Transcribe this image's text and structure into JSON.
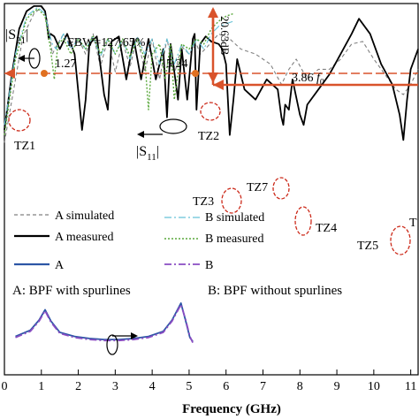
{
  "chart_data": {
    "type": "line",
    "xlabel": "Frequency (GHz)",
    "x_ticks": [
      "0",
      "1",
      "2",
      "3",
      "4",
      "5",
      "6",
      "7",
      "8",
      "9",
      "10",
      "11"
    ],
    "xlim": [
      0,
      11.2
    ],
    "ylim": [
      0,
      1
    ],
    "grid": false,
    "legend_position": "bottom-center",
    "series": [
      {
        "name": "A simulated",
        "style": "dashed",
        "color": "#808080",
        "x": [
          0.0,
          0.3,
          0.5,
          0.8,
          1.0,
          1.1,
          1.2,
          1.3,
          1.4,
          1.6,
          1.8,
          2.0,
          2.2,
          2.4,
          2.6,
          2.8,
          3.0,
          3.2,
          3.4,
          3.6,
          3.8,
          4.0,
          4.2,
          4.4,
          4.6,
          4.8,
          5.0,
          5.2,
          5.3,
          5.5,
          5.8,
          6.1,
          6.4,
          6.8,
          7.2,
          7.5,
          7.7,
          7.9,
          8.2,
          8.5,
          8.8,
          9.1,
          9.4,
          9.7,
          10.0,
          10.3,
          10.6,
          10.8,
          11.0,
          11.2
        ],
        "y": [
          0.45,
          0.7,
          0.87,
          0.96,
          0.985,
          0.97,
          0.9,
          0.8,
          0.83,
          0.88,
          0.83,
          0.86,
          0.8,
          0.88,
          0.75,
          0.86,
          0.73,
          0.85,
          0.75,
          0.87,
          0.73,
          0.86,
          0.7,
          0.86,
          0.72,
          0.83,
          0.8,
          0.84,
          0.8,
          0.83,
          0.88,
          0.86,
          0.82,
          0.8,
          0.76,
          0.68,
          0.74,
          0.78,
          0.7,
          0.74,
          0.74,
          0.78,
          0.84,
          0.85,
          0.78,
          0.72,
          0.66,
          0.64,
          0.68,
          0.74
        ]
      },
      {
        "name": "A measured",
        "style": "solid",
        "color": "#000000",
        "x": [
          0.0,
          0.2,
          0.4,
          0.6,
          0.8,
          1.0,
          1.1,
          1.15,
          1.2,
          1.25,
          1.35,
          1.5,
          1.7,
          1.9,
          2.1,
          2.2,
          2.3,
          2.5,
          2.7,
          2.8,
          2.9,
          3.1,
          3.3,
          3.5,
          3.7,
          3.9,
          4.1,
          4.3,
          4.4,
          4.5,
          4.7,
          4.8,
          4.95,
          5.1,
          5.15,
          5.2,
          5.3,
          5.45,
          5.6,
          5.8,
          5.9,
          6.0,
          6.1,
          6.2,
          6.3,
          6.5,
          6.8,
          7.1,
          7.4,
          7.5,
          7.55,
          7.6,
          7.7,
          7.8,
          8.0,
          8.1,
          8.2,
          8.5,
          8.8,
          9.1,
          9.4,
          9.6,
          9.9,
          10.2,
          10.5,
          10.7,
          10.8,
          10.9,
          11.0,
          11.2
        ],
        "y": [
          0.5,
          0.72,
          0.9,
          0.97,
          0.99,
          0.99,
          0.97,
          0.92,
          0.86,
          0.88,
          0.87,
          0.82,
          0.88,
          0.8,
          0.5,
          0.62,
          0.84,
          0.87,
          0.64,
          0.58,
          0.85,
          0.87,
          0.7,
          0.86,
          0.7,
          0.86,
          0.7,
          0.82,
          0.55,
          0.84,
          0.62,
          0.82,
          0.62,
          0.86,
          0.88,
          0.58,
          0.84,
          0.87,
          0.85,
          0.84,
          0.82,
          0.76,
          0.48,
          0.62,
          0.78,
          0.66,
          0.62,
          0.7,
          0.66,
          0.55,
          0.52,
          0.6,
          0.58,
          0.7,
          0.56,
          0.52,
          0.6,
          0.66,
          0.72,
          0.8,
          0.88,
          0.94,
          0.88,
          0.76,
          0.68,
          0.56,
          0.46,
          0.62,
          0.74,
          0.82
        ]
      },
      {
        "name": "B simulated",
        "style": "dashdot",
        "color": "#66c2d6",
        "x": [
          0.0,
          0.3,
          0.6,
          0.9,
          1.1,
          1.2,
          1.3,
          1.4,
          1.6,
          1.8,
          2.0,
          2.2,
          2.4,
          2.6,
          2.8,
          3.0,
          3.2,
          3.4,
          3.6,
          3.8,
          4.0,
          4.2,
          4.4,
          4.6,
          4.8,
          5.0,
          5.2,
          5.4,
          5.6,
          5.8,
          6.0,
          6.2
        ],
        "y": [
          0.52,
          0.8,
          0.95,
          0.985,
          0.96,
          0.89,
          0.84,
          0.82,
          0.88,
          0.82,
          0.86,
          0.82,
          0.87,
          0.79,
          0.86,
          0.8,
          0.86,
          0.78,
          0.87,
          0.8,
          0.86,
          0.76,
          0.86,
          0.76,
          0.84,
          0.8,
          0.86,
          0.82,
          0.88,
          0.91,
          0.92,
          0.93
        ]
      },
      {
        "name": "B measured",
        "style": "dotted",
        "color": "#5aa83c",
        "x": [
          0.0,
          0.3,
          0.6,
          0.9,
          1.1,
          1.25,
          1.35,
          1.45,
          1.6,
          1.8,
          2.0,
          2.2,
          2.4,
          2.6,
          2.8,
          3.0,
          3.2,
          3.4,
          3.6,
          3.8,
          3.9,
          4.0,
          4.2,
          4.35,
          4.5,
          4.6,
          4.8,
          5.0,
          5.2,
          5.4,
          5.6,
          5.8,
          6.0,
          6.2
        ],
        "y": [
          0.48,
          0.78,
          0.94,
          0.98,
          0.95,
          0.82,
          0.7,
          0.84,
          0.86,
          0.8,
          0.86,
          0.82,
          0.87,
          0.8,
          0.86,
          0.8,
          0.86,
          0.79,
          0.86,
          0.78,
          0.58,
          0.8,
          0.84,
          0.7,
          0.84,
          0.62,
          0.84,
          0.82,
          0.86,
          0.84,
          0.9,
          0.93,
          0.95,
          0.96
        ]
      }
    ],
    "inset": {
      "series": [
        {
          "name": "A",
          "style": "solid",
          "color": "#2d56a6",
          "x": [
            0.0,
            0.5,
            0.8,
            1.0,
            1.2,
            1.5,
            2.0,
            2.5,
            3.0,
            3.5,
            4.0,
            4.5,
            5.0,
            5.3,
            5.6,
            5.75,
            5.9,
            6.0
          ],
          "y": [
            0.3,
            0.42,
            0.62,
            0.82,
            0.6,
            0.38,
            0.3,
            0.26,
            0.24,
            0.24,
            0.26,
            0.3,
            0.4,
            0.62,
            0.95,
            0.62,
            0.28,
            0.2
          ]
        },
        {
          "name": "B",
          "style": "dashdot",
          "color": "#8a4cc2",
          "x": [
            0.0,
            0.5,
            0.8,
            1.0,
            1.2,
            1.5,
            2.0,
            2.5,
            3.0,
            3.5,
            4.0,
            4.5,
            5.0,
            5.3,
            5.6,
            5.75,
            5.9,
            6.0
          ],
          "y": [
            0.28,
            0.4,
            0.6,
            0.8,
            0.58,
            0.36,
            0.28,
            0.24,
            0.22,
            0.22,
            0.24,
            0.28,
            0.38,
            0.6,
            0.92,
            0.64,
            0.3,
            0.18
          ]
        }
      ]
    },
    "annotations": {
      "s21": "|S",
      "s21_sub": "21",
      "s11": "|S",
      "s11_sub": "11",
      "bar": "|",
      "fbw": "FBW=127.65%",
      "f1": "1.27",
      "f2": "5.24",
      "rejection": "20.63dB",
      "harmonic": "3.86",
      "harmonic_unit": "f",
      "harmonic_sub": "0",
      "tz": [
        "TZ1",
        "TZ2",
        "TZ3",
        "TZ7",
        "TZ4",
        "TZ5",
        "T"
      ],
      "caption_a": "A: BPF with spurlines",
      "caption_b": "B: BPF without spurlines"
    },
    "colors": {
      "marker": "#e07020",
      "reference": "#d9532b",
      "tz_circle": "#cc2a1a"
    }
  }
}
